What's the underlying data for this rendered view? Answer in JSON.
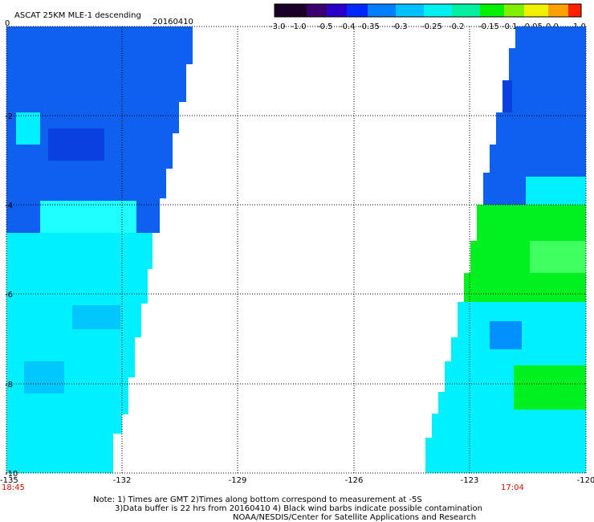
{
  "title": "ASCAT 25KM MLE-1 descending",
  "date": "20160410",
  "colorbar": {
    "labels": [
      "-3.0",
      "-1.0",
      "-0.5",
      "-0.4",
      "-0.35",
      "-0.3",
      "-0.25",
      "-0.2",
      "-0.15",
      "-0.1",
      "-0.05",
      "0.0",
      "1.0"
    ],
    "colors": [
      "#1a0026",
      "#3a0070",
      "#2a00c8",
      "#0028ff",
      "#0080ff",
      "#00c0ff",
      "#00f0f0",
      "#00f0a0",
      "#00f000",
      "#80f000",
      "#f0f000",
      "#ffa000",
      "#ff2000"
    ]
  },
  "axes": {
    "x_ticks": [
      "-135",
      "-132",
      "-129",
      "-126",
      "-123",
      "-120"
    ],
    "y_ticks": [
      "0",
      "-2",
      "-4",
      "-6",
      "-8",
      "-10"
    ]
  },
  "times": {
    "left": "18:45",
    "right": "17:04"
  },
  "notes": [
    "Note: 1) Times are GMT 2)Times along bottom correspond to measurement at -5S",
    "3)Data buffer is 22 hrs from 20160410 4) Black wind barbs indicate possible contamination",
    "NOAA/NESDIS/Center for Satellite Applications and Research"
  ],
  "swath_colors": {
    "blue": "#1060f0",
    "blue_dark": "#0a40e0",
    "cyan": "#00f0ff",
    "cyan_light": "#20ffff",
    "green": "#00f020",
    "green_light": "#40ff60"
  }
}
